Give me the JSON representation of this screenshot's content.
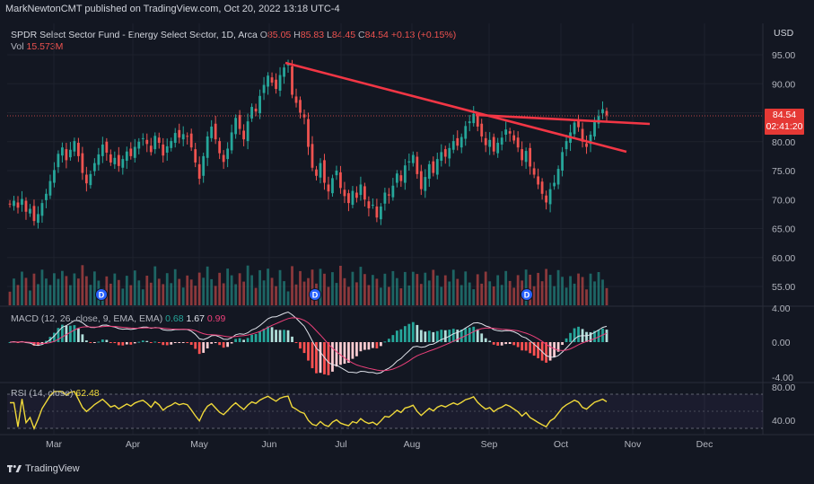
{
  "header": {
    "publisher": "MarkNewtonCMT published on TradingView.com, Oct 20, 2022 13:18 UTC-4"
  },
  "legend": {
    "symbol": "SPDR Select Sector Fund - Energy Select Sector, 1D, Arca",
    "open_label": "O",
    "open": "85.05",
    "high_label": "H",
    "high": "85.83",
    "low_label": "L",
    "low": "84.45",
    "close_label": "C",
    "close": "84.54",
    "change": "+0.13 (+0.15%)",
    "vol_label": "Vol",
    "vol": "15.573M"
  },
  "macd_legend": {
    "label": "MACD (12, 26, close, 9, EMA, EMA)",
    "v1": "0.68",
    "v2": "1.67",
    "v3": "0.99"
  },
  "rsi_legend": {
    "label": "RSI (14, close)",
    "value": "62.48"
  },
  "price_axis": {
    "currency": "USD",
    "tag_price": "84.54",
    "tag_time": "02:41:20"
  },
  "footer": {
    "brand": "TradingView"
  },
  "colors": {
    "up": "#26a69a",
    "down": "#ef5350",
    "trendline": "#f23645",
    "macd": "#e0e3eb",
    "signal": "#ec407a",
    "rsi": "#f0d93a",
    "background": "#131722"
  },
  "chart_data": {
    "type": "candlestick",
    "price_ticks": [
      95,
      90,
      85,
      80,
      75,
      70,
      65,
      60,
      55
    ],
    "macd_ticks": [
      4,
      0,
      -4
    ],
    "rsi_ticks": [
      80,
      40
    ],
    "x_ticks": [
      "Mar",
      "Apr",
      "May",
      "Jun",
      "Jul",
      "Aug",
      "Sep",
      "Oct",
      "Nov",
      "Dec"
    ],
    "last_price": 84.54,
    "dividend_marker": "D",
    "dividend_dates": [
      "2022-03-21",
      "2022-06-21",
      "2022-09-19"
    ],
    "close_series": [
      69.2,
      69.8,
      68.6,
      70.1,
      67.9,
      68.4,
      66.3,
      67.5,
      69.4,
      71.0,
      73.2,
      75.1,
      77.9,
      79.0,
      76.8,
      78.6,
      80.1,
      77.5,
      74.6,
      72.8,
      74.4,
      76.3,
      77.8,
      79.5,
      78.1,
      76.4,
      77.2,
      75.8,
      77.0,
      78.3,
      77.5,
      79.1,
      80.0,
      80.6,
      79.6,
      78.2,
      81.0,
      79.8,
      77.6,
      79.2,
      80.1,
      81.5,
      80.7,
      81.3,
      80.9,
      79.0,
      76.4,
      73.6,
      77.5,
      80.9,
      82.6,
      80.4,
      78.0,
      76.5,
      78.8,
      81.6,
      84.1,
      82.2,
      80.4,
      83.5,
      86.0,
      85.2,
      87.9,
      89.8,
      91.4,
      90.2,
      89.1,
      91.5,
      92.8,
      93.3,
      88.1,
      86.7,
      85.0,
      84.2,
      79.1,
      75.5,
      74.1,
      76.3,
      72.9,
      71.4,
      73.7,
      75.0,
      72.0,
      70.6,
      69.4,
      71.5,
      70.3,
      72.6,
      70.0,
      68.5,
      69.1,
      66.9,
      68.8,
      71.2,
      70.7,
      72.4,
      74.5,
      73.2,
      75.9,
      76.6,
      77.7,
      74.4,
      71.8,
      73.9,
      76.1,
      74.6,
      77.0,
      78.2,
      77.4,
      78.9,
      80.1,
      79.3,
      80.8,
      82.7,
      83.5,
      84.8,
      82.6,
      80.9,
      79.4,
      80.3,
      78.3,
      79.8,
      80.7,
      82.1,
      81.4,
      80.2,
      79.0,
      76.8,
      78.4,
      75.7,
      74.3,
      72.6,
      71.0,
      69.5,
      71.8,
      72.9,
      75.3,
      78.2,
      80.1,
      81.6,
      83.3,
      82.5,
      80.0,
      79.1,
      81.2,
      83.4,
      84.4,
      85.6,
      84.54
    ]
  }
}
